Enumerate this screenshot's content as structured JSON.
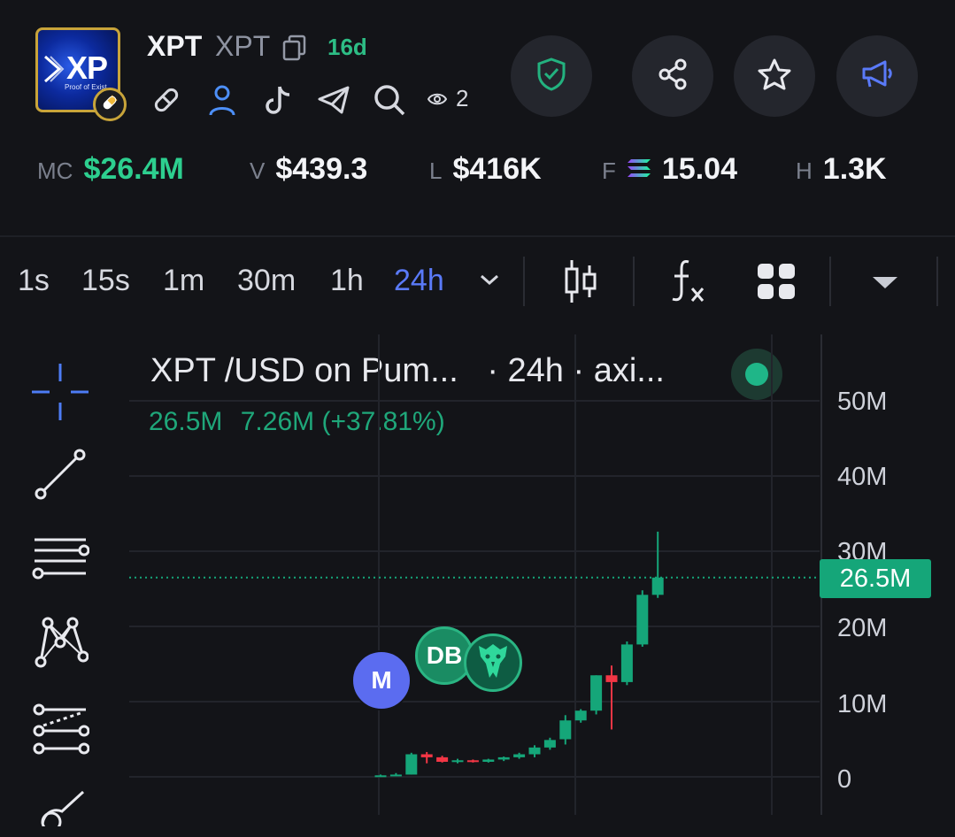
{
  "token": {
    "logo_text": "XP",
    "logo_subtext": "Proof of Exist",
    "name": "XPT",
    "ticker": "XPT",
    "age": "16d",
    "watchers": "2"
  },
  "social_icons": [
    "link-icon",
    "user-icon",
    "tiktok-icon",
    "telegram-icon",
    "search-icon"
  ],
  "actions": [
    "shield-check-icon",
    "share-icon",
    "star-icon",
    "megaphone-icon"
  ],
  "stats": {
    "mc_label": "MC",
    "mc_value": "$26.4M",
    "v_label": "V",
    "v_value": "$439.3",
    "l_label": "L",
    "l_value": "$416K",
    "f_label": "F",
    "f_value": "15.04",
    "h_label": "H",
    "h_value": "1.3K"
  },
  "timeframes": [
    {
      "label": "1s",
      "active": false
    },
    {
      "label": "15s",
      "active": false
    },
    {
      "label": "1m",
      "active": false
    },
    {
      "label": "30m",
      "active": false
    },
    {
      "label": "1h",
      "active": false
    },
    {
      "label": "24h",
      "active": true
    }
  ],
  "chart_header": {
    "title": "XPT /USD on Pum...",
    "subtitle": "· 24h · axi...",
    "last_value": "26.5M",
    "change": "7.26M (+37.81%)"
  },
  "markers": [
    {
      "label": "M",
      "color": "#5b6cf0"
    },
    {
      "label": "DB",
      "color": "#1a8c63"
    },
    {
      "label": "",
      "color": "#0e5c43",
      "icon": "eagle-icon"
    }
  ],
  "colors": {
    "up": "#15a679",
    "down": "#f23645",
    "accent": "#5a7af8"
  },
  "chart_data": {
    "type": "candlestick",
    "timeframe": "24h",
    "y_ticks": [
      "50M",
      "40M",
      "30M",
      "20M",
      "10M",
      "0"
    ],
    "ylim": [
      0,
      50
    ],
    "unit": "M",
    "last_price_label": "26.5M",
    "candles": [
      {
        "o": 0.1,
        "h": 0.3,
        "l": 0.0,
        "c": 0.2
      },
      {
        "o": 0.2,
        "h": 0.5,
        "l": 0.1,
        "c": 0.3
      },
      {
        "o": 0.3,
        "h": 3.2,
        "l": 0.3,
        "c": 3.0
      },
      {
        "o": 3.0,
        "h": 3.3,
        "l": 1.8,
        "c": 2.6
      },
      {
        "o": 2.6,
        "h": 2.8,
        "l": 1.9,
        "c": 2.0
      },
      {
        "o": 2.0,
        "h": 2.4,
        "l": 1.8,
        "c": 2.2
      },
      {
        "o": 2.2,
        "h": 2.3,
        "l": 1.9,
        "c": 2.0
      },
      {
        "o": 2.0,
        "h": 2.4,
        "l": 1.9,
        "c": 2.3
      },
      {
        "o": 2.3,
        "h": 2.7,
        "l": 2.1,
        "c": 2.6
      },
      {
        "o": 2.6,
        "h": 3.2,
        "l": 2.4,
        "c": 3.0
      },
      {
        "o": 3.0,
        "h": 4.2,
        "l": 2.6,
        "c": 3.9
      },
      {
        "o": 3.9,
        "h": 5.2,
        "l": 3.6,
        "c": 4.9
      },
      {
        "o": 5.0,
        "h": 8.2,
        "l": 4.3,
        "c": 7.5
      },
      {
        "o": 7.5,
        "h": 9.0,
        "l": 7.2,
        "c": 8.8
      },
      {
        "o": 8.8,
        "h": 13.5,
        "l": 8.3,
        "c": 13.5
      },
      {
        "o": 13.5,
        "h": 14.8,
        "l": 6.3,
        "c": 12.6
      },
      {
        "o": 12.6,
        "h": 18.0,
        "l": 12.2,
        "c": 17.6
      },
      {
        "o": 17.6,
        "h": 24.8,
        "l": 17.3,
        "c": 24.2
      },
      {
        "o": 24.2,
        "h": 32.6,
        "l": 23.8,
        "c": 26.5
      }
    ]
  }
}
